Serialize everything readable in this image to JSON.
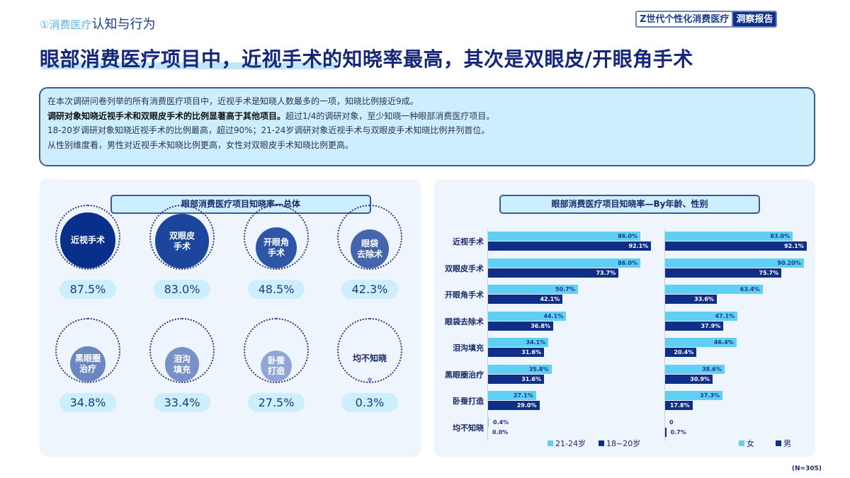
{
  "header": {
    "section_prefix": "①消费医疗",
    "section_title": "认知与行为",
    "brand_left": "Z世代个性化消费医疗",
    "brand_right": "洞察报告"
  },
  "headline": "眼部消费医疗项目中，近视手术的知晓率最高，其次是双眼皮/开眼角手术",
  "summary": {
    "line1": "在本次调研问卷列举的所有消费医疗项目中，近视手术是知晓人数最多的一项，知晓比例接近9成。",
    "line2_bold": "调研对象知晓近视手术和双眼皮手术的比例显著高于其他项目。",
    "line2_rest": "超过1/4的调研对象，至少知晓一种眼部消费医疗项目。",
    "line3": "18-20岁调研对象知晓近视手术的比例最高，超过90%；21-24岁调研对象近视手术与双眼皮手术知晓比例并列首位。",
    "line4": "从性别维度看，男性对近视手术知晓比例更高，女性对双眼皮手术知晓比例更高。"
  },
  "footnote": "(N=305)",
  "colors": {
    "light": "#5fd0f3",
    "dark": "#0f2f86"
  },
  "chart_data": [
    {
      "type": "bubble",
      "title": "眼部消费医疗项目知晓率—总体",
      "items": [
        {
          "label_lines": [
            "近视手术"
          ],
          "value": 87.5,
          "display": "87.5%",
          "color": "#0a2f8a"
        },
        {
          "label_lines": [
            "双眼皮",
            "手术"
          ],
          "value": 83.0,
          "display": "83.0%",
          "color": "#1c459c"
        },
        {
          "label_lines": [
            "开眼角",
            "手术"
          ],
          "value": 48.5,
          "display": "48.5%",
          "color": "#2e56a6"
        },
        {
          "label_lines": [
            "眼袋",
            "去除术"
          ],
          "value": 42.3,
          "display": "42.3%",
          "color": "#4565ad"
        },
        {
          "label_lines": [
            "黑眼圈",
            "治疗"
          ],
          "value": 34.8,
          "display": "34.8%",
          "color": "#6c86c2"
        },
        {
          "label_lines": [
            "泪沟",
            "填充"
          ],
          "value": 33.4,
          "display": "33.4%",
          "color": "#7892c8"
        },
        {
          "label_lines": [
            "卧蚕",
            "打造"
          ],
          "value": 27.5,
          "display": "27.5%",
          "color": "#90a6d4"
        },
        {
          "label_lines": [
            "均不知晓"
          ],
          "value": 0.3,
          "display": "0.3%",
          "color": "#8aa0d0"
        }
      ]
    },
    {
      "type": "bar",
      "orientation": "horizontal",
      "title": "眼部消费医疗项目知晓率—By年龄、性别",
      "categories": [
        "近视手术",
        "双眼皮手术",
        "开眼角手术",
        "眼袋去除术",
        "泪沟填充",
        "黑眼圈治疗",
        "卧蚕打造",
        "均不知晓"
      ],
      "panels": [
        {
          "series": [
            {
              "name": "21-24岁",
              "values": [
                86.0,
                86.0,
                50.7,
                44.1,
                34.1,
                35.8,
                27.1,
                0.4
              ],
              "labels": [
                "86.0%",
                "86.0%",
                "50.7%",
                "44.1%",
                "34.1%",
                "35.8%",
                "27.1%",
                "0.4%"
              ]
            },
            {
              "name": "18~20岁",
              "values": [
                92.1,
                73.7,
                42.1,
                36.8,
                31.6,
                31.6,
                29.0,
                0.0
              ],
              "labels": [
                "92.1%",
                "73.7%",
                "42.1%",
                "36.8%",
                "31.6%",
                "31.6%",
                "29.0%",
                "0.0%"
              ]
            }
          ]
        },
        {
          "series": [
            {
              "name": "女",
              "values": [
                83.0,
                90.2,
                63.4,
                47.1,
                46.4,
                38.6,
                37.3,
                0
              ],
              "labels": [
                "83.0%",
                "90.20%",
                "63.4%",
                "47.1%",
                "46.4%",
                "38.6%",
                "37.3%",
                "0"
              ]
            },
            {
              "name": "男",
              "values": [
                92.1,
                75.7,
                33.6,
                37.9,
                20.4,
                30.9,
                17.8,
                0.7
              ],
              "labels": [
                "92.1%",
                "75.7%",
                "33.6%",
                "37.9%",
                "20.4%",
                "30.9%",
                "17.8%",
                "0.7%"
              ]
            }
          ]
        }
      ],
      "xlim": [
        0,
        100
      ]
    }
  ]
}
